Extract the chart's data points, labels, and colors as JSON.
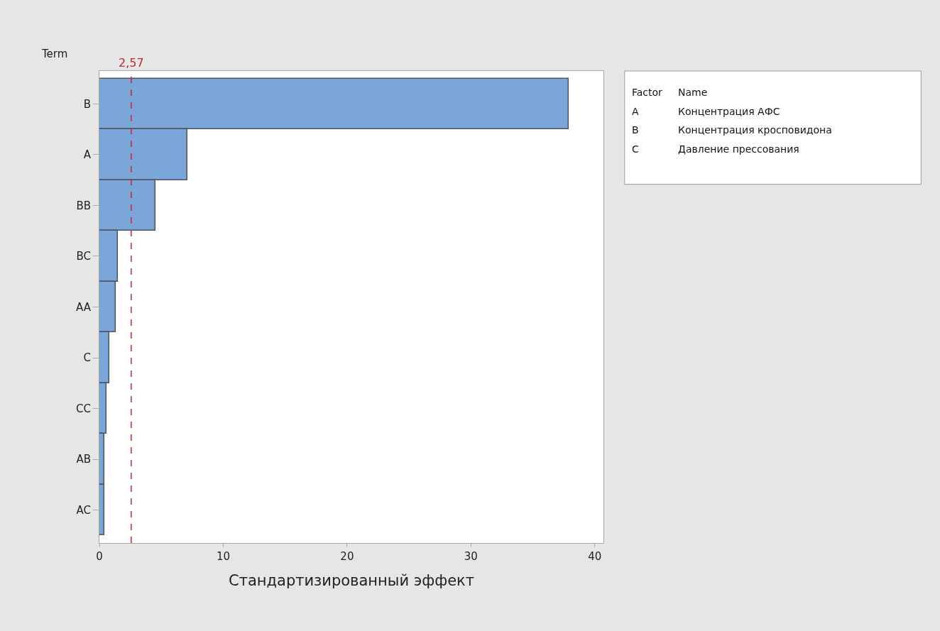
{
  "chart_data": {
    "type": "bar",
    "orientation": "horizontal",
    "categories": [
      "B",
      "A",
      "BB",
      "BC",
      "AA",
      "C",
      "CC",
      "AB",
      "AC"
    ],
    "values": [
      37.9,
      7.1,
      4.5,
      1.5,
      1.3,
      0.8,
      0.6,
      0.4,
      0.4
    ],
    "color": "#7ba6d9",
    "xlim": [
      0,
      40.7
    ],
    "xticks": [
      0,
      10,
      20,
      30,
      40
    ],
    "xlabel": "Стандартизированный эффект",
    "ylabel": "Term",
    "ref_lines": [
      {
        "axis": "x",
        "value": 2.57,
        "label": "2,57",
        "color": "#c8262d",
        "line_style": "dashed"
      }
    ],
    "annotations": [
      "Factor",
      "Name",
      "A",
      "Концентрация АФС",
      "B",
      "Концентрация кросповидона",
      "C",
      "Давление прессования"
    ],
    "grid": false
  }
}
